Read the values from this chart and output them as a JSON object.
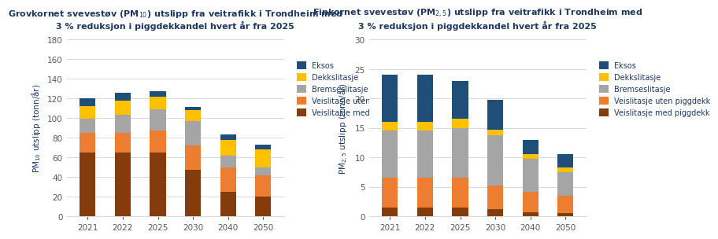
{
  "years": [
    "2021",
    "2022",
    "2025",
    "2030",
    "2040",
    "2050"
  ],
  "pm10": {
    "ylabel": "PM$_{10}$ utslipp (tonn/år)",
    "title1": "Grovkornet svevestøv (PM$_{10}$) utslipp fra veitrafikk i Trondheim med",
    "title2": "3 % reduksjon i piggdekkandel hvert år fra 2025",
    "ylim": [
      0,
      180
    ],
    "yticks": [
      0,
      20,
      40,
      60,
      80,
      100,
      120,
      140,
      160,
      180
    ],
    "veislitasje_pigg": [
      65,
      65,
      65,
      47,
      25,
      20
    ],
    "veislitasje_upigg": [
      20,
      20,
      22,
      25,
      25,
      22
    ],
    "bremseslitasje": [
      14,
      18,
      22,
      25,
      12,
      8
    ],
    "dekkslitasje": [
      13,
      15,
      13,
      11,
      16,
      18
    ],
    "eksos": [
      8,
      8,
      5,
      3,
      5,
      5
    ]
  },
  "pm25": {
    "ylabel": "PM$_{2,5}$ utslipp (tonn/år)",
    "title1": "Finkornet svevestøv (PM$_{2,5}$) utslipp fra veitrafikk i Trondheim med",
    "title2": "3 % reduksjon i piggdekkandel hvert år fra 2025",
    "ylim": [
      0,
      30
    ],
    "yticks": [
      0,
      5,
      10,
      15,
      20,
      25,
      30
    ],
    "veislitasje_pigg": [
      1.5,
      1.5,
      1.5,
      1.2,
      0.7,
      0.5
    ],
    "veislitasje_upigg": [
      5.0,
      5.0,
      5.0,
      4.0,
      3.5,
      3.0
    ],
    "bremseslitasje": [
      8.0,
      8.0,
      8.5,
      8.5,
      5.5,
      4.0
    ],
    "dekkslitasje": [
      1.5,
      1.5,
      1.5,
      1.0,
      0.8,
      0.8
    ],
    "eksos": [
      8.0,
      8.0,
      6.5,
      5.0,
      2.5,
      2.2
    ]
  },
  "colors": {
    "eksos": "#1f4e79",
    "dekkslitasje": "#ffc000",
    "bremseslitasje": "#a5a5a5",
    "veislitasje_upigg": "#ed7d31",
    "veislitasje_pigg": "#843c0c"
  },
  "legend_labels": [
    "Eksos",
    "Dekkslitasje",
    "Bremseslitasje",
    "Veislitasje uten piggdekk",
    "Veislitasje med piggdekk"
  ],
  "title_color": "#1f3864",
  "background_color": "#ffffff",
  "grid_color": "#d9d9d9",
  "tick_color": "#595959",
  "title_fontsize": 8.0,
  "legend_fontsize": 7.0,
  "ylabel_fontsize": 7.5,
  "tick_fontsize": 7.5,
  "bar_width": 0.45
}
